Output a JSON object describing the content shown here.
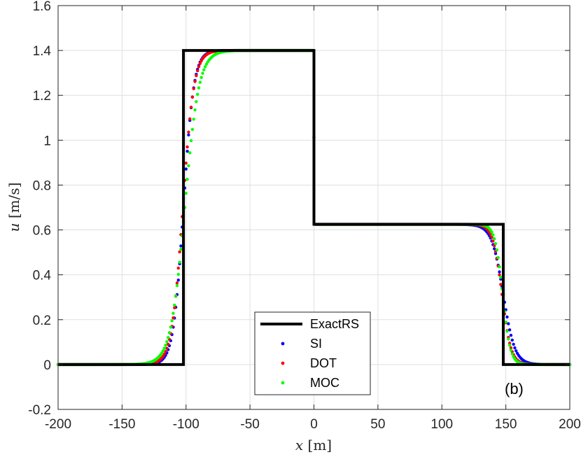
{
  "chart_data": {
    "type": "line",
    "xlabel_var": "x",
    "xlabel_unit": "[m]",
    "ylabel_var": "u",
    "ylabel_unit": "[m/s]",
    "xlim": [
      -200,
      200
    ],
    "ylim": [
      -0.2,
      1.6
    ],
    "xticks": [
      "-200",
      "-150",
      "-100",
      "-50",
      "0",
      "50",
      "100",
      "150",
      "200"
    ],
    "yticks": [
      "-0.2",
      "0",
      "0.2",
      "0.4",
      "0.6",
      "0.8",
      "1",
      "1.2",
      "1.4",
      "1.6"
    ],
    "grid": true,
    "legend_position": "bottom-center",
    "annotation": "(b)",
    "series": [
      {
        "name": "ExactRS",
        "style": "line",
        "color": "#000000",
        "x": [
          -200,
          -102,
          -102,
          0,
          0,
          148,
          148,
          200
        ],
        "y": [
          0,
          0,
          1.4,
          1.4,
          0.625,
          0.625,
          0,
          0
        ]
      },
      {
        "name": "SI",
        "style": "markers",
        "color": "#0000ff",
        "model": {
          "left_front": -102,
          "left_width": 4.0,
          "right_front": 148,
          "right_width": 4.5
        }
      },
      {
        "name": "DOT",
        "style": "markers",
        "color": "#ff0000",
        "model": {
          "left_front": -102.5,
          "left_width": 4.3,
          "right_front": 147,
          "right_width": 3.5
        }
      },
      {
        "name": "MOC",
        "style": "markers",
        "color": "#00ff00",
        "model": {
          "left_front": -101,
          "left_width": 5.5,
          "right_front": 147.5,
          "right_width": 3.0
        }
      }
    ]
  }
}
